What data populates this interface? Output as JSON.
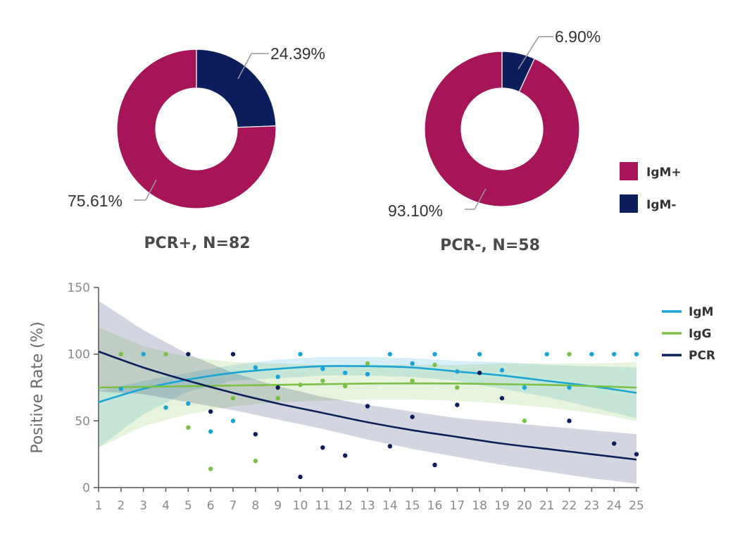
{
  "chart_data": [
    {
      "type": "pie",
      "title": "PCR+, N=82",
      "slices": [
        {
          "label": "IgM-",
          "value": 24.39,
          "display": "24.39%",
          "color": "#0b1e5b"
        },
        {
          "label": "IgM+",
          "value": 75.61,
          "display": "75.61%",
          "color": "#a51558"
        }
      ]
    },
    {
      "type": "pie",
      "title": "PCR-, N=58",
      "slices": [
        {
          "label": "IgM-",
          "value": 6.9,
          "display": "6.90%",
          "color": "#0b1e5b"
        },
        {
          "label": "IgM+",
          "value": 93.1,
          "display": "93.10%",
          "color": "#a51558"
        }
      ]
    },
    {
      "type": "scatter",
      "ylabel": "Positive Rate (%)",
      "xlabel": "",
      "xlim": [
        1,
        25
      ],
      "ylim": [
        0,
        150
      ],
      "xticks": [
        1,
        2,
        3,
        4,
        5,
        6,
        7,
        8,
        9,
        10,
        11,
        12,
        13,
        14,
        15,
        16,
        17,
        18,
        19,
        20,
        21,
        22,
        23,
        24,
        25
      ],
      "yticks": [
        0,
        50,
        100,
        150
      ],
      "grid": false,
      "legend_placement": "top-right",
      "series": [
        {
          "name": "IgM",
          "color": "#1aa3d6",
          "points": [
            [
              2,
              74
            ],
            [
              3,
              100
            ],
            [
              4,
              60
            ],
            [
              5,
              63
            ],
            [
              6,
              42
            ],
            [
              7,
              50
            ],
            [
              8,
              90
            ],
            [
              9,
              83
            ],
            [
              10,
              100
            ],
            [
              11,
              89
            ],
            [
              12,
              86
            ],
            [
              13,
              85
            ],
            [
              14,
              100
            ],
            [
              15,
              93
            ],
            [
              16,
              100
            ],
            [
              17,
              87
            ],
            [
              18,
              100
            ],
            [
              19,
              88
            ],
            [
              20,
              75
            ],
            [
              21,
              100
            ],
            [
              22,
              75
            ],
            [
              23,
              100
            ],
            [
              24,
              100
            ],
            [
              25,
              100
            ]
          ],
          "fit": [
            [
              1,
              64
            ],
            [
              3,
              74
            ],
            [
              5,
              81
            ],
            [
              7,
              86
            ],
            [
              9,
              89
            ],
            [
              11,
              91
            ],
            [
              13,
              91
            ],
            [
              15,
              90
            ],
            [
              17,
              87
            ],
            [
              19,
              84
            ],
            [
              21,
              80
            ],
            [
              23,
              76
            ],
            [
              25,
              71
            ]
          ],
          "band": {
            "upper": [
              [
                1,
                72
              ],
              [
                3,
                80
              ],
              [
                5,
                86
              ],
              [
                7,
                92
              ],
              [
                9,
                96
              ],
              [
                11,
                98
              ],
              [
                13,
                98
              ],
              [
                15,
                97
              ],
              [
                17,
                95
              ],
              [
                19,
                94
              ],
              [
                21,
                92
              ],
              [
                23,
                91
              ],
              [
                25,
                90
              ]
            ],
            "lower": [
              [
                1,
                30
              ],
              [
                3,
                55
              ],
              [
                5,
                72
              ],
              [
                7,
                80
              ],
              [
                9,
                82
              ],
              [
                11,
                84
              ],
              [
                13,
                84
              ],
              [
                15,
                83
              ],
              [
                17,
                80
              ],
              [
                19,
                74
              ],
              [
                21,
                68
              ],
              [
                23,
                60
              ],
              [
                25,
                52
              ]
            ]
          }
        },
        {
          "name": "IgG",
          "color": "#7ac143",
          "points": [
            [
              2,
              100
            ],
            [
              4,
              100
            ],
            [
              5,
              45
            ],
            [
              6,
              14
            ],
            [
              7,
              67
            ],
            [
              8,
              20
            ],
            [
              9,
              67
            ],
            [
              10,
              77
            ],
            [
              11,
              80
            ],
            [
              12,
              76
            ],
            [
              13,
              93
            ],
            [
              15,
              80
            ],
            [
              16,
              92
            ],
            [
              17,
              75
            ],
            [
              20,
              50
            ],
            [
              22,
              100
            ]
          ],
          "fit": [
            [
              1,
              75
            ],
            [
              5,
              76
            ],
            [
              9,
              77
            ],
            [
              13,
              78
            ],
            [
              17,
              78
            ],
            [
              21,
              77
            ],
            [
              25,
              75
            ]
          ],
          "band": {
            "upper": [
              [
                1,
                120
              ],
              [
                3,
                106
              ],
              [
                5,
                98
              ],
              [
                7,
                94
              ],
              [
                9,
                93
              ],
              [
                11,
                92
              ],
              [
                13,
                92
              ],
              [
                15,
                92
              ],
              [
                17,
                92
              ],
              [
                19,
                93
              ],
              [
                21,
                93
              ],
              [
                23,
                93
              ],
              [
                25,
                94
              ]
            ],
            "lower": [
              [
                1,
                30
              ],
              [
                3,
                46
              ],
              [
                5,
                55
              ],
              [
                7,
                61
              ],
              [
                9,
                64
              ],
              [
                11,
                65
              ],
              [
                13,
                66
              ],
              [
                15,
                66
              ],
              [
                17,
                65
              ],
              [
                19,
                63
              ],
              [
                21,
                60
              ],
              [
                23,
                56
              ],
              [
                25,
                50
              ]
            ]
          }
        },
        {
          "name": "PCR",
          "color": "#0b1e5b",
          "points": [
            [
              5,
              100
            ],
            [
              6,
              57
            ],
            [
              7,
              100
            ],
            [
              8,
              40
            ],
            [
              9,
              75
            ],
            [
              10,
              8
            ],
            [
              11,
              30
            ],
            [
              12,
              24
            ],
            [
              13,
              61
            ],
            [
              14,
              31
            ],
            [
              15,
              53
            ],
            [
              16,
              17
            ],
            [
              17,
              62
            ],
            [
              18,
              86
            ],
            [
              19,
              67
            ],
            [
              22,
              50
            ],
            [
              24,
              33
            ],
            [
              25,
              25
            ]
          ],
          "fit": [
            [
              1,
              102
            ],
            [
              3,
              90
            ],
            [
              5,
              80
            ],
            [
              7,
              71
            ],
            [
              9,
              63
            ],
            [
              11,
              56
            ],
            [
              13,
              49
            ],
            [
              15,
              43
            ],
            [
              17,
              38
            ],
            [
              19,
              33
            ],
            [
              21,
              29
            ],
            [
              23,
              25
            ],
            [
              25,
              21
            ]
          ],
          "band": {
            "upper": [
              [
                1,
                140
              ],
              [
                3,
                118
              ],
              [
                5,
                100
              ],
              [
                7,
                86
              ],
              [
                9,
                76
              ],
              [
                11,
                68
              ],
              [
                13,
                62
              ],
              [
                15,
                57
              ],
              [
                17,
                52
              ],
              [
                19,
                49
              ],
              [
                21,
                46
              ],
              [
                23,
                43
              ],
              [
                25,
                40
              ]
            ],
            "lower": [
              [
                1,
                72
              ],
              [
                3,
                70
              ],
              [
                5,
                64
              ],
              [
                7,
                58
              ],
              [
                9,
                51
              ],
              [
                11,
                44
              ],
              [
                13,
                36
              ],
              [
                15,
                29
              ],
              [
                17,
                23
              ],
              [
                19,
                17
              ],
              [
                21,
                12
              ],
              [
                23,
                7
              ],
              [
                25,
                3
              ]
            ]
          }
        }
      ]
    }
  ],
  "pie_legend": [
    {
      "label": "IgM+",
      "color": "#a51558"
    },
    {
      "label": "IgM-",
      "color": "#0b1e5b"
    }
  ]
}
